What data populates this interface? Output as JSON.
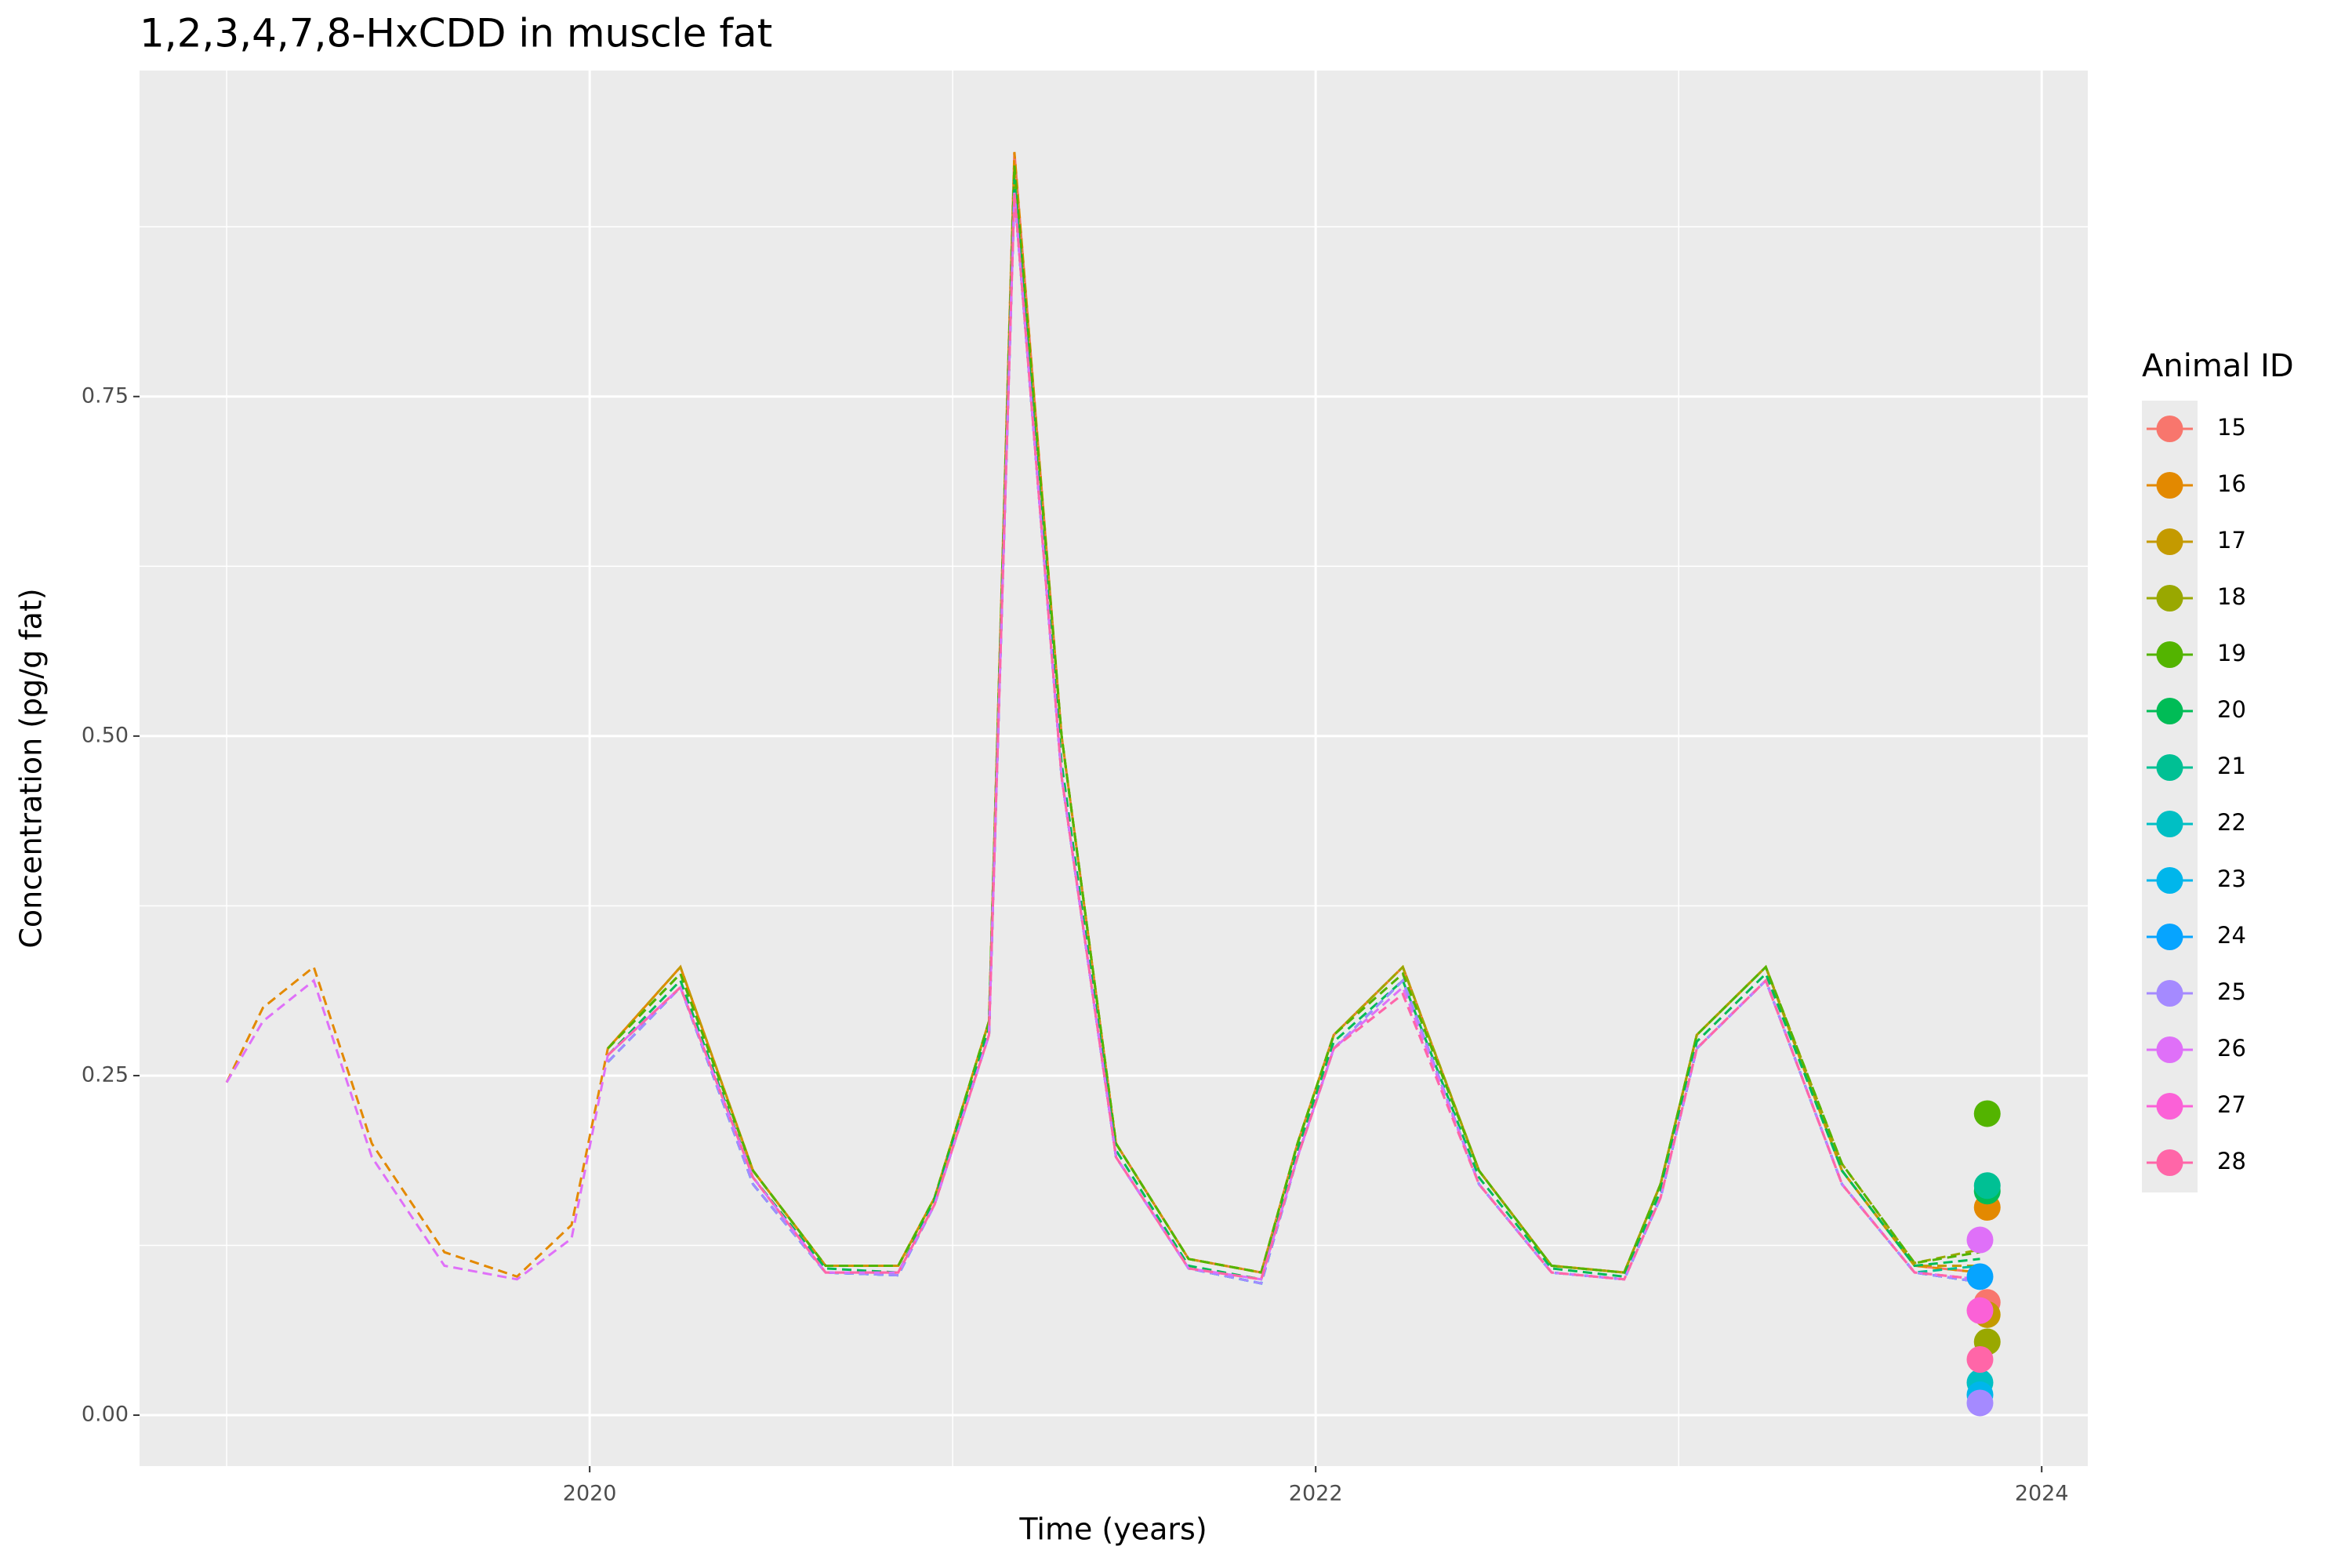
{
  "chart_data": {
    "type": "line",
    "title": "1,2,3,4,7,8-HxCDD  in muscle fat",
    "x_label": "Time (years)",
    "y_label": "Concentration (pg/g fat)",
    "legend_title": "Animal ID",
    "legend_position": "right",
    "grid": true,
    "line_style": "dashed",
    "xlim": [
      2018.76,
      2024.127
    ],
    "ylim": [
      -0.0375,
      0.99
    ],
    "xticks": [
      2020,
      2022,
      2024
    ],
    "yticks": [
      {
        "value": 0,
        "label": "0.00"
      },
      0.25,
      {
        "value": 0.5,
        "label": "0.50"
      },
      0.75
    ],
    "minor_xticks": [
      2019,
      2021,
      2023
    ],
    "minor_yticks": [
      0.125,
      0.375,
      0.625,
      0.875
    ],
    "x": [
      2019.0,
      2019.1,
      2019.24,
      2019.4,
      2019.6,
      2019.8,
      2019.95,
      2020.05,
      2020.25,
      2020.45,
      2020.65,
      2020.85,
      2020.95,
      2021.1,
      2021.17,
      2021.3,
      2021.45,
      2021.65,
      2021.85,
      2021.95,
      2022.05,
      2022.24,
      2022.45,
      2022.65,
      2022.85,
      2022.95,
      2023.05,
      2023.24,
      2023.45,
      2023.65,
      2023.83
    ],
    "series": [
      {
        "name": "15",
        "color": "#F8766D",
        "values": [
          null,
          null,
          null,
          null,
          null,
          null,
          null,
          0.27,
          0.33,
          0.18,
          0.11,
          0.11,
          0.16,
          0.29,
          0.93,
          0.5,
          0.2,
          0.115,
          0.105,
          0.2,
          0.28,
          0.33,
          0.18,
          0.11,
          0.105,
          0.17,
          0.28,
          0.33,
          0.18,
          0.11,
          0.105
        ],
        "obs_x": 2023.85,
        "obs_value": 0.083
      },
      {
        "name": "16",
        "color": "#E38900",
        "values": [
          0.245,
          0.3,
          0.33,
          0.2,
          0.12,
          0.102,
          0.14,
          0.27,
          0.33,
          0.18,
          0.11,
          0.11,
          0.16,
          0.29,
          0.93,
          0.5,
          0.2,
          0.115,
          0.105,
          0.2,
          0.28,
          0.33,
          0.18,
          0.11,
          0.105,
          0.17,
          0.28,
          0.33,
          0.18,
          0.11,
          0.105
        ],
        "obs_x": 2023.85,
        "obs_value": 0.153
      },
      {
        "name": "17",
        "color": "#C49A00",
        "values": [
          null,
          null,
          null,
          null,
          null,
          null,
          null,
          0.27,
          0.33,
          0.18,
          0.11,
          0.11,
          0.16,
          0.29,
          0.92,
          0.5,
          0.2,
          0.115,
          0.105,
          0.2,
          0.28,
          0.33,
          0.18,
          0.11,
          0.105,
          0.17,
          0.28,
          0.33,
          0.18,
          0.11,
          0.11
        ],
        "obs_x": 2023.85,
        "obs_value": 0.074
      },
      {
        "name": "18",
        "color": "#99A800",
        "values": [
          null,
          null,
          null,
          null,
          null,
          null,
          null,
          0.27,
          0.325,
          0.18,
          0.11,
          0.11,
          0.16,
          0.29,
          0.92,
          0.5,
          0.2,
          0.115,
          0.105,
          0.2,
          0.28,
          0.33,
          0.18,
          0.11,
          0.105,
          0.17,
          0.28,
          0.33,
          0.185,
          0.112,
          0.122
        ],
        "obs_x": 2023.85,
        "obs_value": 0.054
      },
      {
        "name": "19",
        "color": "#53B400",
        "values": [
          null,
          null,
          null,
          null,
          null,
          null,
          null,
          0.27,
          0.325,
          0.18,
          0.11,
          0.11,
          0.16,
          0.29,
          0.92,
          0.5,
          0.2,
          0.115,
          0.105,
          0.2,
          0.28,
          0.325,
          0.18,
          0.11,
          0.105,
          0.17,
          0.28,
          0.33,
          0.185,
          0.112,
          0.12
        ],
        "obs_x": 2023.85,
        "obs_value": 0.222
      },
      {
        "name": "20",
        "color": "#00BC56",
        "values": [
          null,
          null,
          null,
          null,
          null,
          null,
          null,
          0.265,
          0.32,
          0.175,
          0.108,
          0.105,
          0.158,
          0.285,
          0.91,
          0.48,
          0.195,
          0.11,
          0.1,
          0.195,
          0.275,
          0.32,
          0.175,
          0.108,
          0.102,
          0.165,
          0.275,
          0.325,
          0.18,
          0.11,
          0.115
        ],
        "obs_x": 2023.85,
        "obs_value": 0.165
      },
      {
        "name": "21",
        "color": "#00C094",
        "values": [
          null,
          null,
          null,
          null,
          null,
          null,
          null,
          0.26,
          0.315,
          0.17,
          0.105,
          0.103,
          0.155,
          0.28,
          0.9,
          0.47,
          0.19,
          0.108,
          0.097,
          0.19,
          0.27,
          0.32,
          0.17,
          0.105,
          0.1,
          0.16,
          0.27,
          0.32,
          0.17,
          0.105,
          0.11
        ],
        "obs_x": 2023.85,
        "obs_value": 0.169
      },
      {
        "name": "22",
        "color": "#00BFC4",
        "values": [
          null,
          null,
          null,
          null,
          null,
          null,
          null,
          0.26,
          0.315,
          0.17,
          0.105,
          0.103,
          0.155,
          0.28,
          0.9,
          0.47,
          0.19,
          0.108,
          0.097,
          0.19,
          0.27,
          0.32,
          0.17,
          0.105,
          0.1,
          0.16,
          0.27,
          0.32,
          0.17,
          0.105,
          0.098
        ],
        "obs_x": 2023.83,
        "obs_value": 0.024
      },
      {
        "name": "23",
        "color": "#00B6EB",
        "values": [
          null,
          null,
          null,
          null,
          null,
          null,
          null,
          0.26,
          0.315,
          0.17,
          0.105,
          0.103,
          0.155,
          0.28,
          0.9,
          0.47,
          0.19,
          0.108,
          0.097,
          0.19,
          0.27,
          0.32,
          0.17,
          0.105,
          0.1,
          0.16,
          0.27,
          0.32,
          0.17,
          0.105,
          0.098
        ],
        "obs_x": 2023.83,
        "obs_value": 0.015
      },
      {
        "name": "24",
        "color": "#06A4FF",
        "values": [
          null,
          null,
          null,
          null,
          null,
          null,
          null,
          0.26,
          0.315,
          0.17,
          0.105,
          0.103,
          0.155,
          0.28,
          0.9,
          0.47,
          0.19,
          0.108,
          0.097,
          0.19,
          0.27,
          0.32,
          0.17,
          0.105,
          0.1,
          0.16,
          0.27,
          0.32,
          0.17,
          0.105,
          0.098
        ],
        "obs_x": 2023.83,
        "obs_value": 0.102
      },
      {
        "name": "25",
        "color": "#A58AFF",
        "values": [
          null,
          null,
          null,
          null,
          null,
          null,
          null,
          0.26,
          0.315,
          0.17,
          0.105,
          0.103,
          0.155,
          0.28,
          0.9,
          0.47,
          0.19,
          0.108,
          0.097,
          0.19,
          0.27,
          0.32,
          0.17,
          0.105,
          0.1,
          0.16,
          0.27,
          0.32,
          0.17,
          0.105,
          0.098
        ],
        "obs_x": 2023.83,
        "obs_value": 0.009
      },
      {
        "name": "26",
        "color": "#DF70F8",
        "values": [
          0.245,
          0.29,
          0.32,
          0.19,
          0.11,
          0.1,
          0.13,
          0.265,
          0.315,
          0.175,
          0.105,
          0.105,
          0.155,
          0.28,
          0.9,
          0.47,
          0.19,
          0.108,
          0.1,
          0.19,
          0.27,
          0.315,
          0.17,
          0.105,
          0.1,
          0.16,
          0.27,
          0.32,
          0.17,
          0.105,
          0.1
        ],
        "obs_x": 2023.83,
        "obs_value": 0.129
      },
      {
        "name": "27",
        "color": "#FB61D7",
        "values": [
          null,
          null,
          null,
          null,
          null,
          null,
          null,
          0.265,
          0.315,
          0.175,
          0.105,
          0.105,
          0.155,
          0.28,
          0.9,
          0.47,
          0.19,
          0.108,
          0.1,
          0.19,
          0.27,
          0.31,
          0.17,
          0.105,
          0.1,
          0.16,
          0.27,
          0.32,
          0.17,
          0.105,
          0.1
        ],
        "obs_x": 2023.83,
        "obs_value": 0.077
      },
      {
        "name": "28",
        "color": "#FF66A8",
        "values": [
          null,
          null,
          null,
          null,
          null,
          null,
          null,
          0.265,
          0.315,
          0.175,
          0.105,
          0.105,
          0.155,
          0.28,
          0.9,
          0.47,
          0.19,
          0.108,
          0.1,
          0.19,
          0.27,
          0.31,
          0.17,
          0.105,
          0.1,
          0.16,
          0.27,
          0.32,
          0.17,
          0.105,
          0.1
        ],
        "obs_x": 2023.83,
        "obs_value": 0.041
      }
    ]
  }
}
